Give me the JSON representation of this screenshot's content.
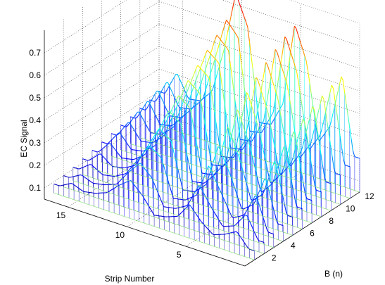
{
  "chart_data": {
    "type": "surface3d-waterfall",
    "title": "",
    "zlabel": "EC Signal",
    "xlabel": "Strip Number",
    "ylabel": "B (n)",
    "zlim": [
      0.05,
      0.8
    ],
    "xlim": [
      0,
      17
    ],
    "ylim": [
      0,
      12
    ],
    "z_ticks": [
      "0.1",
      "0.2",
      "0.3",
      "0.4",
      "0.5",
      "0.6",
      "0.7"
    ],
    "x_ticks": [
      "5",
      "10",
      "15"
    ],
    "y_ticks": [
      "2",
      "4",
      "6",
      "8",
      "10",
      "12"
    ],
    "grid": true,
    "colormap": "jet",
    "series": [
      {
        "B": 1,
        "values": [
          0.09,
          0.15,
          0.12,
          0.1,
          0.14,
          0.2,
          0.13,
          0.11,
          0.1,
          0.17,
          0.22,
          0.18,
          0.13,
          0.11,
          0.1,
          0.12,
          0.09
        ]
      },
      {
        "B": 2,
        "values": [
          0.1,
          0.2,
          0.13,
          0.11,
          0.18,
          0.26,
          0.15,
          0.12,
          0.11,
          0.22,
          0.27,
          0.21,
          0.14,
          0.12,
          0.11,
          0.13,
          0.1
        ]
      },
      {
        "B": 3,
        "values": [
          0.11,
          0.26,
          0.15,
          0.12,
          0.22,
          0.32,
          0.17,
          0.13,
          0.12,
          0.28,
          0.32,
          0.24,
          0.16,
          0.13,
          0.12,
          0.15,
          0.11
        ]
      },
      {
        "B": 4,
        "values": [
          0.12,
          0.31,
          0.17,
          0.13,
          0.27,
          0.38,
          0.19,
          0.14,
          0.13,
          0.33,
          0.37,
          0.27,
          0.17,
          0.14,
          0.13,
          0.17,
          0.12
        ]
      },
      {
        "B": 5,
        "values": [
          0.13,
          0.36,
          0.19,
          0.14,
          0.31,
          0.44,
          0.21,
          0.15,
          0.14,
          0.38,
          0.42,
          0.3,
          0.19,
          0.15,
          0.14,
          0.19,
          0.13
        ]
      },
      {
        "B": 6,
        "values": [
          0.14,
          0.4,
          0.21,
          0.15,
          0.35,
          0.49,
          0.23,
          0.16,
          0.15,
          0.42,
          0.46,
          0.33,
          0.2,
          0.16,
          0.15,
          0.21,
          0.14
        ]
      },
      {
        "B": 7,
        "values": [
          0.15,
          0.44,
          0.23,
          0.16,
          0.39,
          0.54,
          0.25,
          0.17,
          0.16,
          0.46,
          0.5,
          0.36,
          0.22,
          0.17,
          0.16,
          0.23,
          0.15
        ]
      },
      {
        "B": 8,
        "values": [
          0.16,
          0.47,
          0.25,
          0.17,
          0.43,
          0.58,
          0.27,
          0.18,
          0.17,
          0.5,
          0.54,
          0.39,
          0.23,
          0.18,
          0.17,
          0.25,
          0.16
        ]
      },
      {
        "B": 9,
        "values": [
          0.17,
          0.5,
          0.27,
          0.18,
          0.47,
          0.62,
          0.29,
          0.19,
          0.18,
          0.54,
          0.58,
          0.42,
          0.25,
          0.19,
          0.18,
          0.27,
          0.17
        ]
      },
      {
        "B": 10,
        "values": [
          0.18,
          0.52,
          0.28,
          0.19,
          0.5,
          0.65,
          0.31,
          0.2,
          0.19,
          0.57,
          0.62,
          0.44,
          0.26,
          0.2,
          0.19,
          0.29,
          0.18
        ]
      },
      {
        "B": 11,
        "values": [
          0.19,
          0.54,
          0.29,
          0.2,
          0.53,
          0.68,
          0.32,
          0.21,
          0.2,
          0.6,
          0.66,
          0.46,
          0.27,
          0.21,
          0.2,
          0.3,
          0.19
        ]
      },
      {
        "B": 12,
        "values": [
          0.2,
          0.55,
          0.3,
          0.21,
          0.55,
          0.7,
          0.33,
          0.22,
          0.21,
          0.62,
          0.75,
          0.48,
          0.28,
          0.22,
          0.21,
          0.31,
          0.2
        ]
      }
    ]
  }
}
